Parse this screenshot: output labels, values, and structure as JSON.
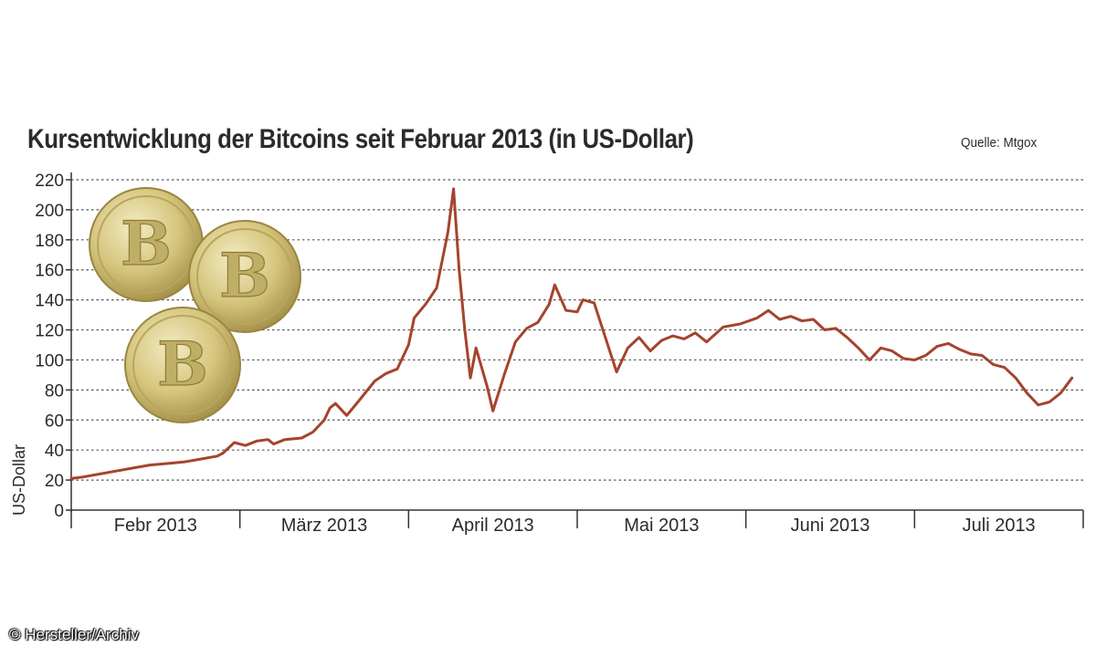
{
  "title": "Kursentwicklung der Bitcoins seit Februar 2013 (in US-Dollar)",
  "source": "Quelle: Mtgox",
  "copyright": "© Hersteller/Archiv",
  "colors": {
    "line": "#a4442e",
    "grid": "#555555",
    "text": "#2b2b2b",
    "coin": "#d9c880"
  },
  "decoration": {
    "coins": [
      "bitcoin-coin",
      "bitcoin-coin",
      "bitcoin-coin"
    ],
    "coin_letter": "B"
  },
  "chart_data": {
    "type": "line",
    "title": "Kursentwicklung der Bitcoins seit Februar 2013 (in US-Dollar)",
    "xlabel": "",
    "ylabel": "US-Dollar",
    "ylim": [
      0,
      220
    ],
    "yticks": [
      0,
      20,
      40,
      60,
      80,
      100,
      120,
      140,
      160,
      180,
      200,
      220
    ],
    "xlim": [
      "2013-02-01",
      "2013-07-31"
    ],
    "months": [
      "Febr 2013",
      "März 2013",
      "April 2013",
      "Mai 2013",
      "Juni 2013",
      "Juli 2013"
    ],
    "grid": true,
    "series": [
      {
        "points": [
          [
            "2013-02-01",
            21
          ],
          [
            "2013-02-03",
            22
          ],
          [
            "2013-02-06",
            24
          ],
          [
            "2013-02-09",
            26
          ],
          [
            "2013-02-12",
            28
          ],
          [
            "2013-02-15",
            30
          ],
          [
            "2013-02-18",
            31
          ],
          [
            "2013-02-21",
            32
          ],
          [
            "2013-02-24",
            34
          ],
          [
            "2013-02-27",
            36
          ],
          [
            "2013-02-28",
            38
          ],
          [
            "2013-03-02",
            45
          ],
          [
            "2013-03-04",
            43
          ],
          [
            "2013-03-06",
            46
          ],
          [
            "2013-03-08",
            47
          ],
          [
            "2013-03-09",
            44
          ],
          [
            "2013-03-11",
            47
          ],
          [
            "2013-03-14",
            48
          ],
          [
            "2013-03-16",
            52
          ],
          [
            "2013-03-18",
            60
          ],
          [
            "2013-03-19",
            68
          ],
          [
            "2013-03-20",
            71
          ],
          [
            "2013-03-22",
            63
          ],
          [
            "2013-03-24",
            72
          ],
          [
            "2013-03-27",
            86
          ],
          [
            "2013-03-29",
            91
          ],
          [
            "2013-03-31",
            94
          ],
          [
            "2013-04-02",
            110
          ],
          [
            "2013-04-03",
            128
          ],
          [
            "2013-04-05",
            137
          ],
          [
            "2013-04-07",
            148
          ],
          [
            "2013-04-09",
            185
          ],
          [
            "2013-04-10",
            214
          ],
          [
            "2013-04-11",
            160
          ],
          [
            "2013-04-12",
            120
          ],
          [
            "2013-04-13",
            88
          ],
          [
            "2013-04-14",
            108
          ],
          [
            "2013-04-16",
            82
          ],
          [
            "2013-04-17",
            66
          ],
          [
            "2013-04-19",
            90
          ],
          [
            "2013-04-21",
            112
          ],
          [
            "2013-04-23",
            121
          ],
          [
            "2013-04-25",
            125
          ],
          [
            "2013-04-27",
            137
          ],
          [
            "2013-04-28",
            150
          ],
          [
            "2013-04-30",
            133
          ],
          [
            "2013-05-02",
            132
          ],
          [
            "2013-05-03",
            140
          ],
          [
            "2013-05-05",
            138
          ],
          [
            "2013-05-07",
            115
          ],
          [
            "2013-05-09",
            92
          ],
          [
            "2013-05-11",
            108
          ],
          [
            "2013-05-13",
            115
          ],
          [
            "2013-05-15",
            106
          ],
          [
            "2013-05-17",
            113
          ],
          [
            "2013-05-19",
            116
          ],
          [
            "2013-05-21",
            114
          ],
          [
            "2013-05-23",
            118
          ],
          [
            "2013-05-25",
            112
          ],
          [
            "2013-05-28",
            122
          ],
          [
            "2013-05-31",
            124
          ],
          [
            "2013-06-03",
            128
          ],
          [
            "2013-06-05",
            133
          ],
          [
            "2013-06-07",
            127
          ],
          [
            "2013-06-09",
            129
          ],
          [
            "2013-06-11",
            126
          ],
          [
            "2013-06-13",
            127
          ],
          [
            "2013-06-15",
            120
          ],
          [
            "2013-06-17",
            121
          ],
          [
            "2013-06-19",
            115
          ],
          [
            "2013-06-21",
            108
          ],
          [
            "2013-06-23",
            100
          ],
          [
            "2013-06-25",
            108
          ],
          [
            "2013-06-27",
            106
          ],
          [
            "2013-06-29",
            101
          ],
          [
            "2013-07-01",
            100
          ],
          [
            "2013-07-03",
            103
          ],
          [
            "2013-07-05",
            109
          ],
          [
            "2013-07-07",
            111
          ],
          [
            "2013-07-09",
            107
          ],
          [
            "2013-07-11",
            104
          ],
          [
            "2013-07-13",
            103
          ],
          [
            "2013-07-15",
            97
          ],
          [
            "2013-07-17",
            95
          ],
          [
            "2013-07-19",
            88
          ],
          [
            "2013-07-21",
            78
          ],
          [
            "2013-07-23",
            70
          ],
          [
            "2013-07-25",
            72
          ],
          [
            "2013-07-27",
            78
          ],
          [
            "2013-07-29",
            88
          ]
        ]
      }
    ]
  }
}
